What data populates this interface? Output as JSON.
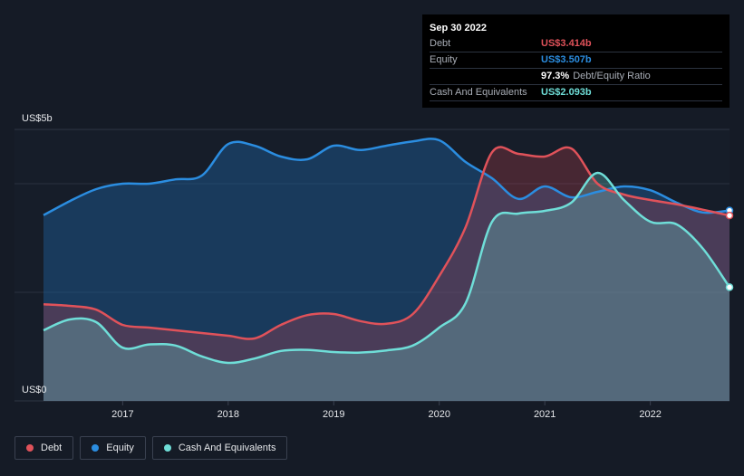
{
  "tooltip": {
    "date": "Sep 30 2022",
    "rows": [
      {
        "label": "Debt",
        "value": "US$3.414b",
        "color": "#e0525a",
        "suffix": ""
      },
      {
        "label": "Equity",
        "value": "US$3.507b",
        "color": "#2b8de0",
        "suffix": ""
      },
      {
        "label": "",
        "value": "97.3%",
        "color": "#ffffff",
        "suffix": "Debt/Equity Ratio"
      },
      {
        "label": "Cash And Equivalents",
        "value": "US$2.093b",
        "color": "#6fded8",
        "suffix": ""
      }
    ]
  },
  "legend": [
    {
      "label": "Debt",
      "color": "#e0525a"
    },
    {
      "label": "Equity",
      "color": "#2b8de0"
    },
    {
      "label": "Cash And Equivalents",
      "color": "#6fded8"
    }
  ],
  "chart_data": {
    "type": "area",
    "y_top_label": "US$5b",
    "y_bottom_label": "US$0",
    "ylim": [
      0,
      5
    ],
    "xlim": [
      2016.25,
      2022.75
    ],
    "x_ticks": [
      {
        "value": 2017,
        "label": "2017"
      },
      {
        "value": 2018,
        "label": "2018"
      },
      {
        "value": 2019,
        "label": "2019"
      },
      {
        "value": 2020,
        "label": "2020"
      },
      {
        "value": 2021,
        "label": "2021"
      },
      {
        "value": 2022,
        "label": "2022"
      }
    ],
    "grid": true,
    "series": [
      {
        "name": "Equity",
        "color": "#2b8de0",
        "x": [
          2016.25,
          2016.5,
          2016.75,
          2017.0,
          2017.25,
          2017.5,
          2017.75,
          2018.0,
          2018.25,
          2018.5,
          2018.75,
          2019.0,
          2019.25,
          2019.5,
          2019.75,
          2020.0,
          2020.25,
          2020.5,
          2020.75,
          2021.0,
          2021.25,
          2021.5,
          2021.75,
          2022.0,
          2022.25,
          2022.5,
          2022.75
        ],
        "y": [
          3.42,
          3.68,
          3.9,
          4.0,
          4.0,
          4.08,
          4.15,
          4.73,
          4.7,
          4.5,
          4.45,
          4.7,
          4.62,
          4.7,
          4.78,
          4.8,
          4.4,
          4.1,
          3.72,
          3.95,
          3.75,
          3.85,
          3.95,
          3.88,
          3.65,
          3.47,
          3.507
        ]
      },
      {
        "name": "Debt",
        "color": "#e0525a",
        "x": [
          2016.25,
          2016.5,
          2016.75,
          2017.0,
          2017.25,
          2017.5,
          2017.75,
          2018.0,
          2018.25,
          2018.5,
          2018.75,
          2019.0,
          2019.25,
          2019.5,
          2019.75,
          2020.0,
          2020.25,
          2020.5,
          2020.75,
          2021.0,
          2021.25,
          2021.5,
          2021.75,
          2022.0,
          2022.25,
          2022.5,
          2022.75
        ],
        "y": [
          1.78,
          1.75,
          1.68,
          1.4,
          1.35,
          1.3,
          1.25,
          1.2,
          1.15,
          1.4,
          1.58,
          1.6,
          1.47,
          1.42,
          1.6,
          2.3,
          3.2,
          4.58,
          4.55,
          4.5,
          4.65,
          4.0,
          3.8,
          3.7,
          3.62,
          3.52,
          3.414
        ]
      },
      {
        "name": "Cash And Equivalents",
        "color": "#6fded8",
        "x": [
          2016.25,
          2016.5,
          2016.75,
          2017.0,
          2017.25,
          2017.5,
          2017.75,
          2018.0,
          2018.25,
          2018.5,
          2018.75,
          2019.0,
          2019.25,
          2019.5,
          2019.75,
          2020.0,
          2020.25,
          2020.5,
          2020.75,
          2021.0,
          2021.25,
          2021.5,
          2021.75,
          2022.0,
          2022.25,
          2022.5,
          2022.75
        ],
        "y": [
          1.3,
          1.5,
          1.45,
          0.98,
          1.04,
          1.02,
          0.82,
          0.7,
          0.78,
          0.92,
          0.94,
          0.9,
          0.89,
          0.93,
          1.02,
          1.35,
          1.8,
          3.3,
          3.45,
          3.5,
          3.65,
          4.2,
          3.7,
          3.3,
          3.25,
          2.8,
          2.093
        ]
      }
    ]
  }
}
